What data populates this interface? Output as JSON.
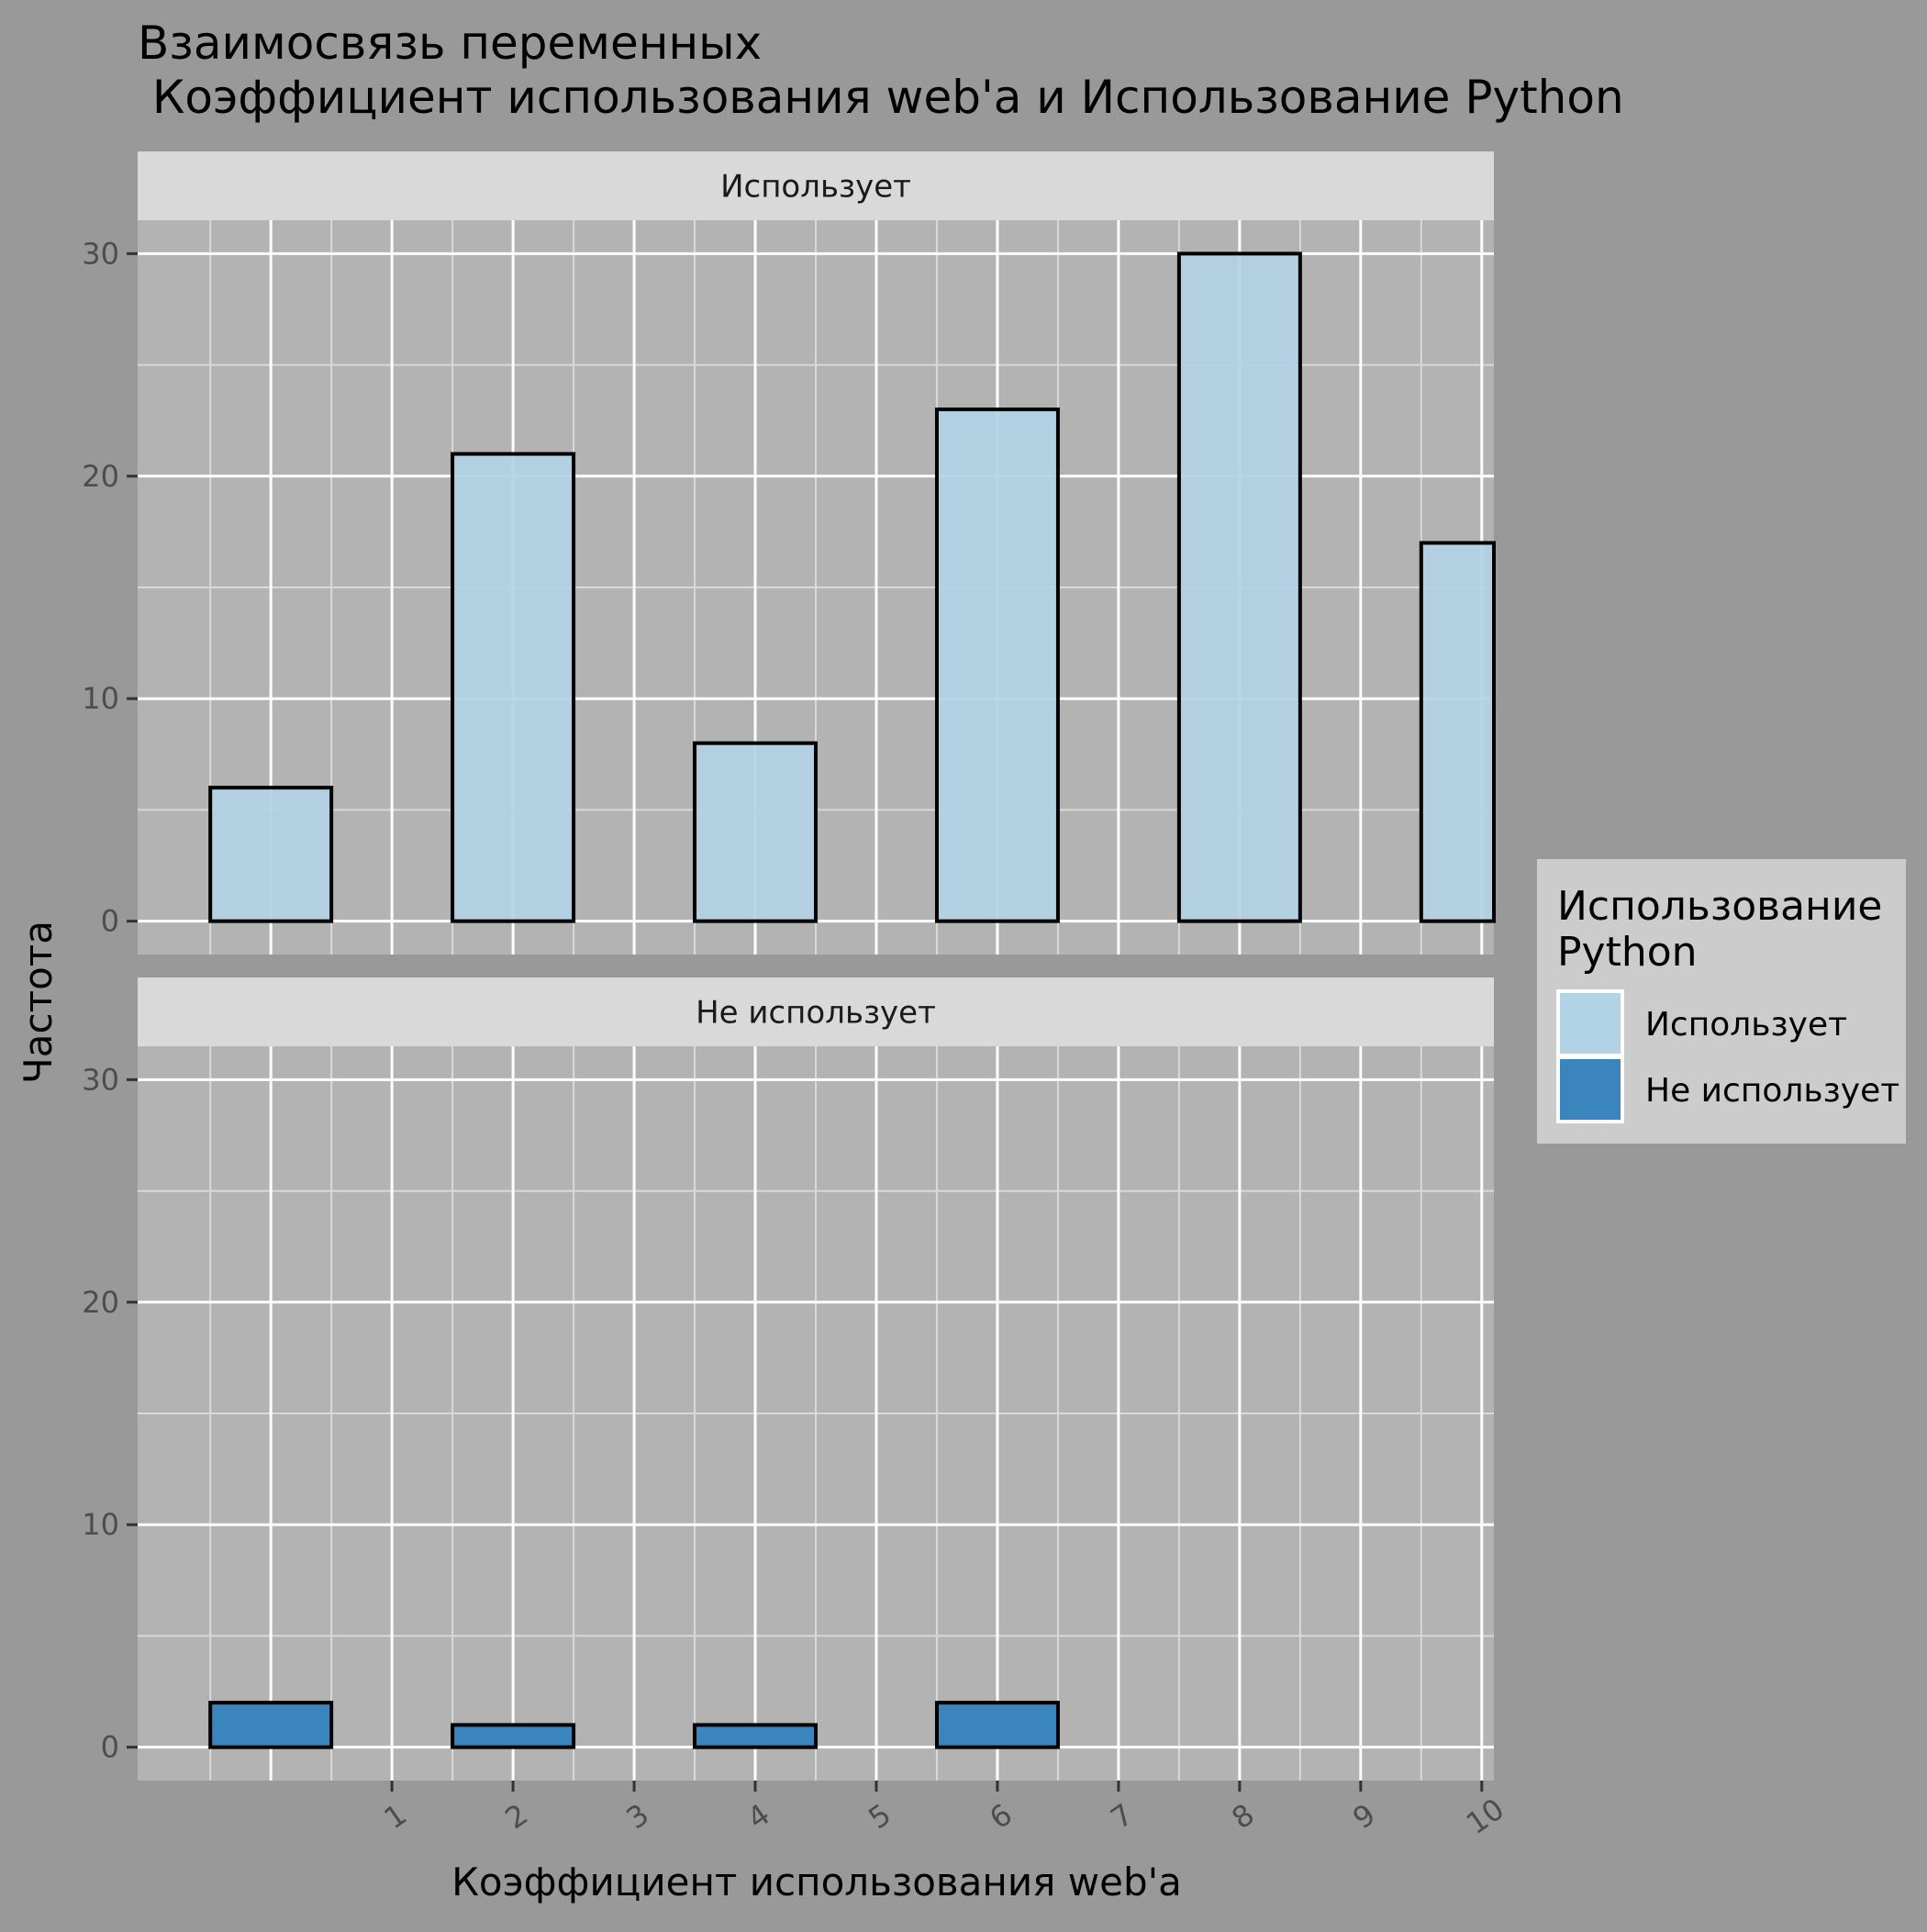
{
  "chart_data": {
    "type": "bar",
    "title_line1": "Взаимосвязь переменных",
    "title_line2": " Коэффициент использования web'a и Использование Python",
    "xlabel": "Коэффициент использования web'a",
    "ylabel": "Частота",
    "x_ticks": [
      "1",
      "2",
      "3",
      "4",
      "5",
      "6",
      "7",
      "8",
      "9",
      "10"
    ],
    "xlim": [
      -0.1,
      11.1
    ],
    "ylim": [
      -1.5,
      31.5
    ],
    "y_ticks": [
      0,
      10,
      20,
      30
    ],
    "grid": true,
    "legend": {
      "title_line1": "Использование",
      "title_line2": "Python",
      "position": "right"
    },
    "panels": [
      {
        "label": "Использует",
        "color": "#b3d3e7",
        "bins": [
          {
            "x0": 0.5,
            "x1": 1.5,
            "value": 6
          },
          {
            "x0": 1.5,
            "x1": 2.5,
            "value": 0
          },
          {
            "x0": 2.5,
            "x1": 3.5,
            "value": 21
          },
          {
            "x0": 3.5,
            "x1": 4.5,
            "value": 0
          },
          {
            "x0": 4.5,
            "x1": 5.5,
            "value": 8
          },
          {
            "x0": 5.5,
            "x1": 6.5,
            "value": 0
          },
          {
            "x0": 6.5,
            "x1": 7.5,
            "value": 23
          },
          {
            "x0": 7.5,
            "x1": 8.5,
            "value": 0
          },
          {
            "x0": 8.5,
            "x1": 9.5,
            "value": 30
          },
          {
            "x0": 9.5,
            "x1": 10.5,
            "value": 0
          },
          {
            "x0": 10.5,
            "x1": 11.5,
            "value": 17
          }
        ]
      },
      {
        "label": "Не использует",
        "color": "#3a85bd",
        "bins": [
          {
            "x0": 0.5,
            "x1": 1.5,
            "value": 2
          },
          {
            "x0": 1.5,
            "x1": 2.5,
            "value": 0
          },
          {
            "x0": 2.5,
            "x1": 3.5,
            "value": 1
          },
          {
            "x0": 3.5,
            "x1": 4.5,
            "value": 0
          },
          {
            "x0": 4.5,
            "x1": 5.5,
            "value": 1
          },
          {
            "x0": 5.5,
            "x1": 6.5,
            "value": 0
          },
          {
            "x0": 6.5,
            "x1": 7.5,
            "value": 2
          },
          {
            "x0": 7.5,
            "x1": 8.5,
            "value": 0
          },
          {
            "x0": 8.5,
            "x1": 9.5,
            "value": 0
          },
          {
            "x0": 9.5,
            "x1": 10.5,
            "value": 0
          },
          {
            "x0": 10.5,
            "x1": 11.5,
            "value": 0
          }
        ]
      }
    ]
  }
}
